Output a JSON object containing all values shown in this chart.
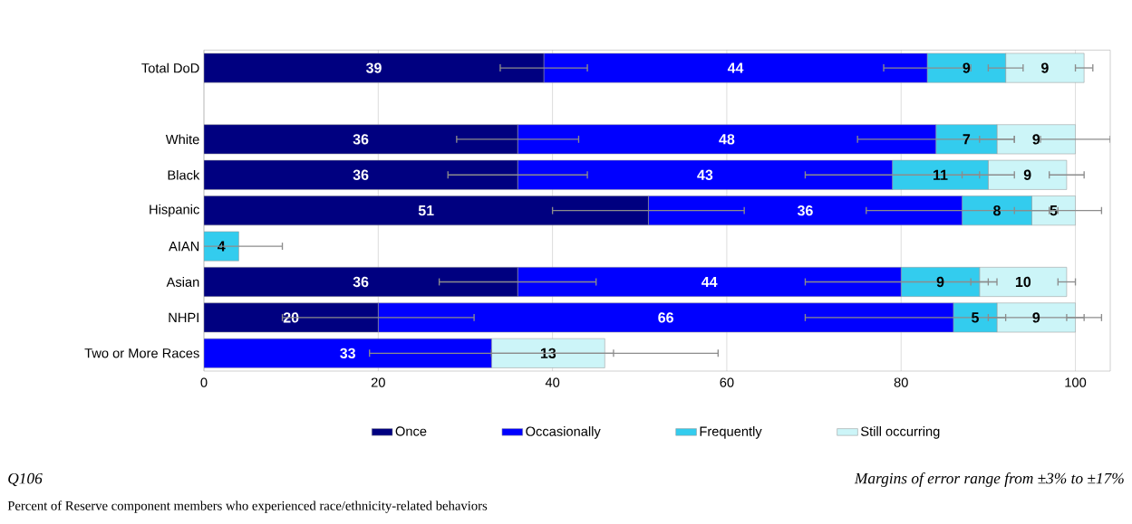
{
  "chart_data": {
    "type": "bar",
    "orientation": "horizontal",
    "stacked": true,
    "categories": [
      "Total DoD",
      null,
      "White",
      "Black",
      "Hispanic",
      "AIAN",
      "Asian",
      "NHPI",
      "Two or More Races"
    ],
    "series": [
      {
        "name": "Once",
        "color": "#000080",
        "values": [
          39,
          null,
          36,
          36,
          51,
          null,
          36,
          20,
          null
        ],
        "errors": [
          5,
          null,
          7,
          8,
          11,
          null,
          9,
          11,
          null
        ]
      },
      {
        "name": "Occasionally",
        "color": "#0000ff",
        "values": [
          44,
          null,
          48,
          43,
          36,
          null,
          44,
          66,
          33
        ],
        "errors": [
          5,
          null,
          9,
          10,
          11,
          null,
          11,
          17,
          14
        ]
      },
      {
        "name": "Frequently",
        "color": "#33ccee",
        "values": [
          9,
          null,
          7,
          11,
          8,
          4,
          9,
          5,
          null
        ],
        "errors": [
          2,
          null,
          2,
          3,
          2,
          5,
          1,
          1,
          null
        ]
      },
      {
        "name": "Still occurring",
        "color": "#ccf5f8",
        "values": [
          9,
          null,
          9,
          9,
          5,
          null,
          10,
          9,
          13
        ],
        "errors": [
          1,
          null,
          4,
          2,
          3,
          null,
          1,
          1,
          13
        ]
      }
    ],
    "xlim": [
      0,
      104
    ],
    "xticks": [
      0,
      20,
      40,
      60,
      80,
      100
    ],
    "grid": "x",
    "legend": "bottom",
    "data_labels": true,
    "annotations": [
      "*Q106*",
      "*Margins of error range from ±3% to ±17%*",
      "Percent of Reserve component members who experienced race/ethnicity-related behaviors"
    ]
  }
}
